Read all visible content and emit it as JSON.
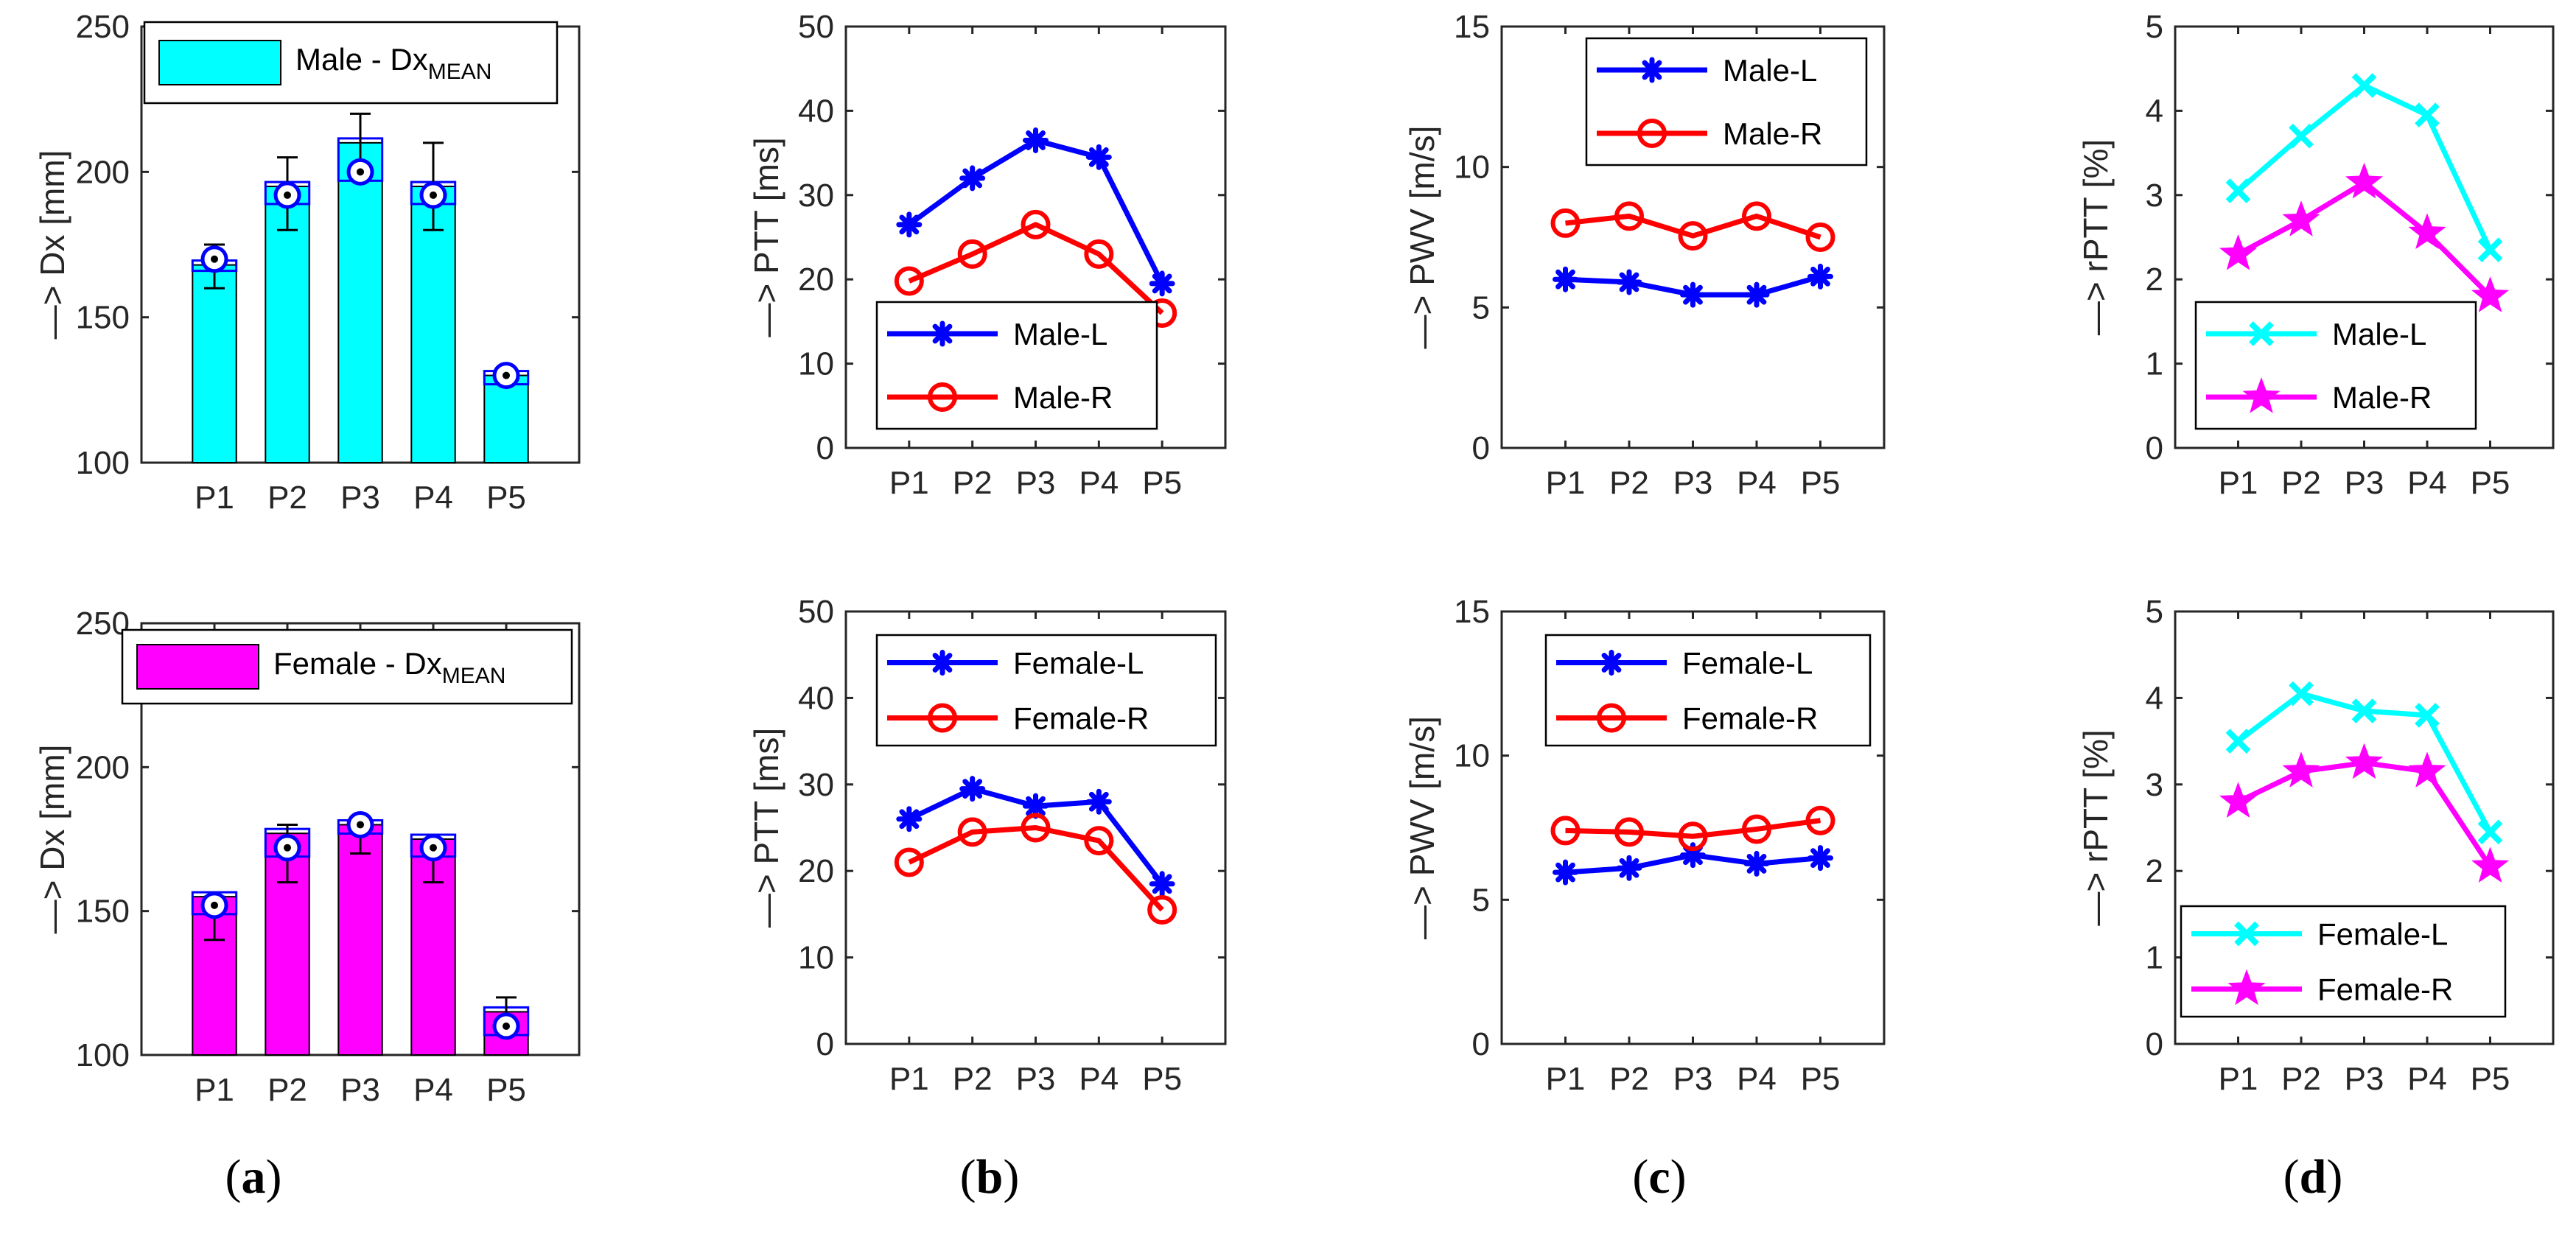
{
  "captions": [
    {
      "open": "(",
      "letter": "a",
      "close": ")"
    },
    {
      "open": "(",
      "letter": "b",
      "close": ")"
    },
    {
      "open": "(",
      "letter": "c",
      "close": ")"
    },
    {
      "open": "(",
      "letter": "d",
      "close": ")"
    }
  ],
  "colors": {
    "cyan": "#00FFFF",
    "magenta": "#FF00FF",
    "blue": "#0000FF",
    "red": "#FF0000",
    "axis": "#262626"
  },
  "chart_data": [
    {
      "id": "a-top",
      "type": "bar",
      "categories": [
        "P1",
        "P2",
        "P3",
        "P4",
        "P5"
      ],
      "values": [
        168,
        195,
        210,
        195,
        130
      ],
      "marker_values": [
        170,
        192,
        200,
        192,
        130
      ],
      "error": [
        [
          160,
          175
        ],
        [
          180,
          205
        ],
        [
          200,
          220
        ],
        [
          180,
          210
        ],
        [
          130,
          130
        ]
      ],
      "bar_color": "cyan",
      "ylabel": "—> Dx [mm]",
      "ylim": [
        100,
        250
      ],
      "yticks": [
        100,
        150,
        200,
        250
      ],
      "legend": [
        {
          "name": "Male - Dx",
          "sub": "MEAN"
        }
      ],
      "legend_position": "top"
    },
    {
      "id": "b-top",
      "type": "line",
      "categories": [
        "P1",
        "P2",
        "P3",
        "P4",
        "P5"
      ],
      "series": [
        {
          "name": "Male-L",
          "values": [
            26.5,
            32,
            36.5,
            34.5,
            19.5
          ],
          "color": "blue",
          "marker": "asterisk"
        },
        {
          "name": "Male-R",
          "values": [
            19.8,
            23,
            26.5,
            23,
            16
          ],
          "color": "red",
          "marker": "circle"
        }
      ],
      "ylabel": "—> PTT [ms]",
      "ylim": [
        0,
        50
      ],
      "yticks": [
        0,
        10,
        20,
        30,
        40,
        50
      ],
      "legend_position": "bottom-right"
    },
    {
      "id": "c-top",
      "type": "line",
      "categories": [
        "P1",
        "P2",
        "P3",
        "P4",
        "P5"
      ],
      "series": [
        {
          "name": "Male-L",
          "values": [
            6.0,
            5.9,
            5.45,
            5.45,
            6.1
          ],
          "color": "blue",
          "marker": "asterisk"
        },
        {
          "name": "Male-R",
          "values": [
            8.0,
            8.25,
            7.55,
            8.25,
            7.5
          ],
          "color": "red",
          "marker": "circle"
        }
      ],
      "ylabel": "—> PWV [m/s]",
      "ylim": [
        0,
        15
      ],
      "yticks": [
        0,
        5,
        10,
        15
      ],
      "legend_position": "top-right"
    },
    {
      "id": "d-top",
      "type": "line",
      "categories": [
        "P1",
        "P2",
        "P3",
        "P4",
        "P5"
      ],
      "series": [
        {
          "name": "Male-L",
          "values": [
            3.05,
            3.7,
            4.3,
            3.95,
            2.35
          ],
          "color": "cyan",
          "marker": "x"
        },
        {
          "name": "Male-R",
          "values": [
            2.3,
            2.7,
            3.15,
            2.55,
            1.8
          ],
          "color": "magenta",
          "marker": "star"
        }
      ],
      "ylabel": "—> rPTT [%]",
      "ylim": [
        0,
        5
      ],
      "yticks": [
        0,
        1,
        2,
        3,
        4,
        5
      ],
      "legend_position": "bottom-right"
    },
    {
      "id": "a-bot",
      "type": "bar",
      "categories": [
        "P1",
        "P2",
        "P3",
        "P4",
        "P5"
      ],
      "values": [
        155,
        177,
        180,
        175,
        115
      ],
      "marker_values": [
        152,
        172,
        180,
        172,
        110
      ],
      "error": [
        [
          140,
          155
        ],
        [
          160,
          180
        ],
        [
          170,
          180
        ],
        [
          160,
          175
        ],
        [
          110,
          120
        ]
      ],
      "bar_color": "magenta",
      "ylabel": "—> Dx [mm]",
      "ylim": [
        100,
        250
      ],
      "yticks": [
        100,
        150,
        200,
        250
      ],
      "legend": [
        {
          "name": "Female - Dx",
          "sub": "MEAN"
        }
      ],
      "legend_position": "top"
    },
    {
      "id": "b-bot",
      "type": "line",
      "categories": [
        "P1",
        "P2",
        "P3",
        "P4",
        "P5"
      ],
      "series": [
        {
          "name": "Female-L",
          "values": [
            26,
            29.5,
            27.5,
            28,
            18.5
          ],
          "color": "blue",
          "marker": "asterisk"
        },
        {
          "name": "Female-R",
          "values": [
            21,
            24.5,
            25,
            23.5,
            15.5
          ],
          "color": "red",
          "marker": "circle"
        }
      ],
      "ylabel": "—> PTT [ms]",
      "ylim": [
        0,
        50
      ],
      "yticks": [
        0,
        10,
        20,
        30,
        40,
        50
      ],
      "legend_position": "top-right"
    },
    {
      "id": "c-bot",
      "type": "line",
      "categories": [
        "P1",
        "P2",
        "P3",
        "P4",
        "P5"
      ],
      "series": [
        {
          "name": "Female-L",
          "values": [
            5.95,
            6.1,
            6.55,
            6.25,
            6.45
          ],
          "color": "blue",
          "marker": "asterisk"
        },
        {
          "name": "Female-R",
          "values": [
            7.4,
            7.35,
            7.2,
            7.45,
            7.75
          ],
          "color": "red",
          "marker": "circle"
        }
      ],
      "ylabel": "—> PWV [m/s]",
      "ylim": [
        0,
        15
      ],
      "yticks": [
        0,
        5,
        10,
        15
      ],
      "legend_position": "top-right"
    },
    {
      "id": "d-bot",
      "type": "line",
      "categories": [
        "P1",
        "P2",
        "P3",
        "P4",
        "P5"
      ],
      "series": [
        {
          "name": "Female-L",
          "values": [
            3.5,
            4.05,
            3.85,
            3.8,
            2.45
          ],
          "color": "cyan",
          "marker": "x"
        },
        {
          "name": "Female-R",
          "values": [
            2.8,
            3.15,
            3.25,
            3.15,
            2.05
          ],
          "color": "magenta",
          "marker": "star"
        }
      ],
      "ylabel": "—> rPTT [%]",
      "ylim": [
        0,
        5
      ],
      "yticks": [
        0,
        1,
        2,
        3,
        4,
        5
      ],
      "legend_position": "bottom-right"
    }
  ]
}
